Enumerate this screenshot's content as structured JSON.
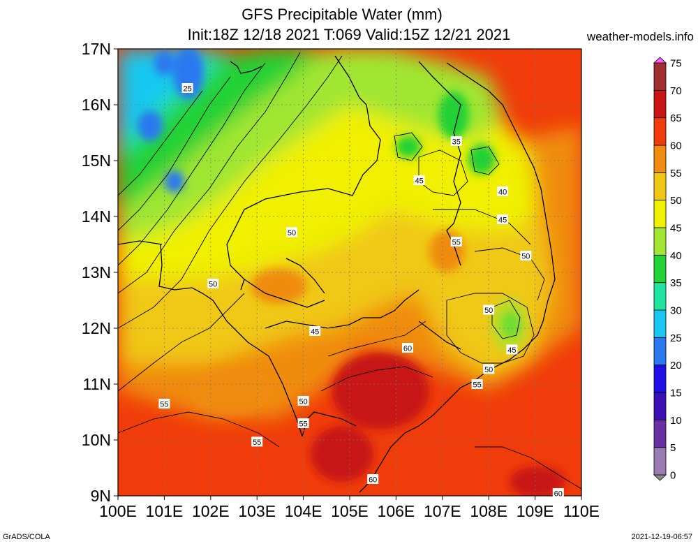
{
  "header": {
    "title_line1": "GFS Precipitable Water (mm)",
    "title_line2": "Init:18Z 12/18 2021 T:069 Valid:15Z 12/21 2021",
    "site": "weather-models.info"
  },
  "footer": {
    "left": "GrADS/COLA",
    "right": "2021-12-19-06:57"
  },
  "axes": {
    "lat_labels": [
      "17N",
      "16N",
      "15N",
      "14N",
      "13N",
      "12N",
      "11N",
      "10N",
      "9N"
    ],
    "lon_labels": [
      "100E",
      "101E",
      "102E",
      "103E",
      "104E",
      "105E",
      "106E",
      "107E",
      "108E",
      "109E",
      "110E"
    ]
  },
  "legend": {
    "levels": [
      "0",
      "5",
      "10",
      "15",
      "20",
      "25",
      "30",
      "35",
      "40",
      "45",
      "50",
      "55",
      "60",
      "65",
      "70",
      "75"
    ],
    "colors": [
      "#8c8c8c",
      "#9b7bb4",
      "#6a2fa3",
      "#3c0fb4",
      "#1c10e6",
      "#2b78f0",
      "#19c8f0",
      "#20e5a0",
      "#22d236",
      "#a0e632",
      "#f0f000",
      "#f0c814",
      "#f08c10",
      "#f03c0a",
      "#c81414",
      "#a03030",
      "#d81e8c",
      "#ff5aff"
    ]
  },
  "contour_labels": [
    {
      "text": "25",
      "lon": 101.5,
      "lat": 16.3
    },
    {
      "text": "35",
      "lon": 107.3,
      "lat": 15.35
    },
    {
      "text": "45",
      "lon": 106.5,
      "lat": 14.65
    },
    {
      "text": "40",
      "lon": 108.3,
      "lat": 14.45
    },
    {
      "text": "45",
      "lon": 108.3,
      "lat": 13.95
    },
    {
      "text": "50",
      "lon": 103.75,
      "lat": 13.72
    },
    {
      "text": "55",
      "lon": 107.3,
      "lat": 13.55
    },
    {
      "text": "50",
      "lon": 108.8,
      "lat": 13.3
    },
    {
      "text": "50",
      "lon": 102.05,
      "lat": 12.8
    },
    {
      "text": "50",
      "lon": 108.0,
      "lat": 12.33
    },
    {
      "text": "45",
      "lon": 104.25,
      "lat": 11.95
    },
    {
      "text": "45",
      "lon": 108.5,
      "lat": 11.62
    },
    {
      "text": "60",
      "lon": 106.25,
      "lat": 11.65
    },
    {
      "text": "50",
      "lon": 108.0,
      "lat": 11.27
    },
    {
      "text": "55",
      "lon": 107.75,
      "lat": 11.0
    },
    {
      "text": "55",
      "lon": 101.0,
      "lat": 10.65
    },
    {
      "text": "50",
      "lon": 104.0,
      "lat": 10.7
    },
    {
      "text": "55",
      "lon": 104.0,
      "lat": 10.3
    },
    {
      "text": "55",
      "lon": 103.0,
      "lat": 9.97
    },
    {
      "text": "60",
      "lon": 105.5,
      "lat": 9.3
    },
    {
      "text": "60",
      "lon": 109.5,
      "lat": 9.05
    }
  ]
}
